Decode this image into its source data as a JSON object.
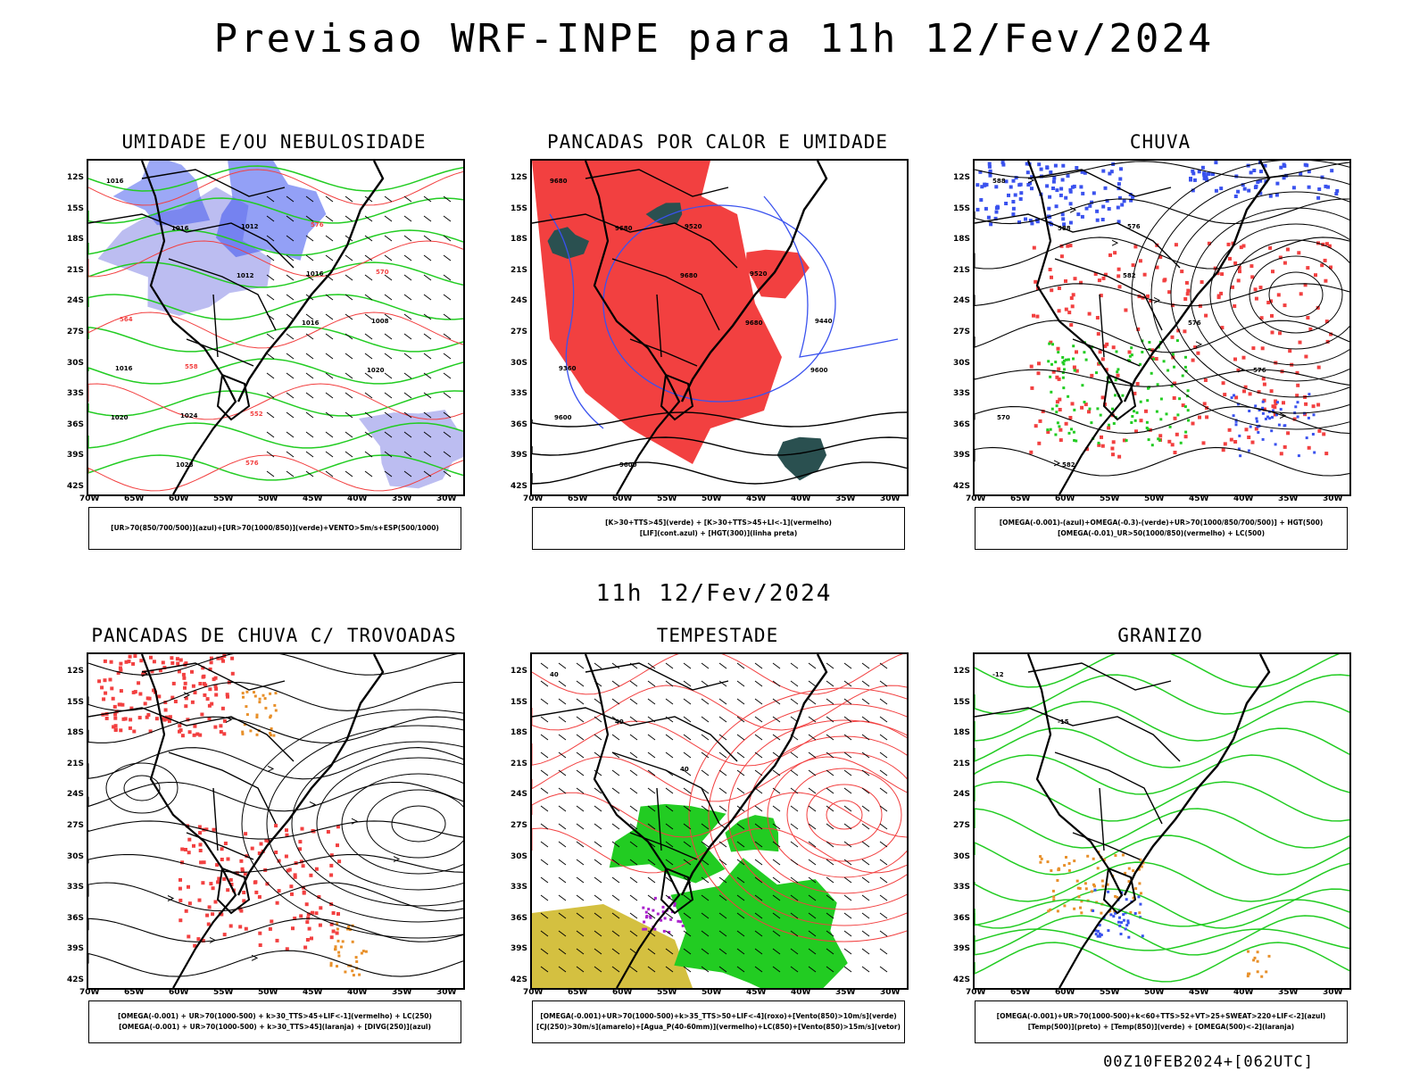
{
  "title": "Previsao WRF-INPE  para 11h 12/Fev/2024",
  "mid_title": "11h 12/Fev/2024",
  "footer": "00Z10FEB2024+[062UTC]",
  "lat_labels": [
    "12S",
    "15S",
    "18S",
    "21S",
    "24S",
    "27S",
    "30S",
    "33S",
    "36S",
    "39S",
    "42S"
  ],
  "lon_labels": [
    "70W",
    "65W",
    "60W",
    "55W",
    "50W",
    "45W",
    "40W",
    "35W",
    "30W"
  ],
  "colors": {
    "red": "#f24040",
    "blue": "#3a52ee",
    "lightblue": "#b0b2ee",
    "green": "#22cc22",
    "dark": "#2a5050",
    "orange": "#e8902a",
    "purple": "#aa22cc",
    "yellow": "#d4c040"
  },
  "panels": [
    {
      "title": "UMIDADE E/OU NEBULOSIDADE",
      "legend": [
        "[UR>70(850/700/500)](azul)+[UR>70(1000/850)](verde)+VENTO>5m/s+ESP(500/1000)"
      ],
      "contour_labels": [
        "1016",
        "1016",
        "1012",
        "1016",
        "1020",
        "1020",
        "1028",
        "1012",
        "1016",
        "1008",
        "1016",
        "1024",
        "576",
        "576",
        "570",
        "564",
        "558",
        "552"
      ]
    },
    {
      "title": "PANCADAS POR CALOR E UMIDADE",
      "legend": [
        "[K>30+TTS>45](verde) + [K>30+TTS>45+LI<-1](vermelho)",
        "[LIF](cont.azul) + [HGT(300)](linha preta)"
      ],
      "contour_labels": [
        "9680",
        "9680",
        "9680",
        "9680",
        "9600",
        "9600",
        "9600",
        "9520",
        "9520",
        "9440",
        "9360"
      ]
    },
    {
      "title": "CHUVA",
      "legend": [
        "[OMEGA(-0.001)-(azul)+OMEGA(-0.3)-(verde)+UR>70(1000/850/700/500)] + HGT(500)",
        "[OMEGA(-0.01)_UR>50(1000/850)(vermelho) + LC(500)"
      ],
      "contour_labels": [
        "588",
        "588",
        "582",
        "576",
        "576",
        "570",
        "582",
        "576"
      ]
    },
    {
      "title": "PANCADAS DE CHUVA C/ TROVOADAS",
      "legend": [
        "[OMEGA(-0.001) + UR>70(1000-500) + k>30_TTS>45+LIF<-1](vermelho) + LC(250)",
        "[OMEGA(-0.001) + UR>70(1000-500) + k>30_TTS>45](laranja) + [DIVG(250)](azul)"
      ],
      "contour_labels": []
    },
    {
      "title": "TEMPESTADE",
      "legend": [
        "[OMEGA(-0.001)+UR>70(1000-500)+k>35_TTS>50+LIF<-4](roxo)+[Vento(850)>10m/s](verde)",
        "[CJ(250)>30m/s](amarelo)+[Agua_P(40-60mm)](vermelho)+LC(850)+[Vento(850)>15m/s](vetor)"
      ],
      "contour_labels": [
        "40",
        "40",
        "40"
      ]
    },
    {
      "title": "GRANIZO",
      "legend": [
        "[OMEGA(-0.001)+UR>70(1000-500)+k<60+TTS>52+VT>25+SWEAT>220+LIF<-2](azul)",
        "[Temp(500)](preto) + [Temp(850)](verde) + [OMEGA(500)<-2](laranja)"
      ],
      "contour_labels": [
        "-12",
        "-15"
      ]
    }
  ]
}
